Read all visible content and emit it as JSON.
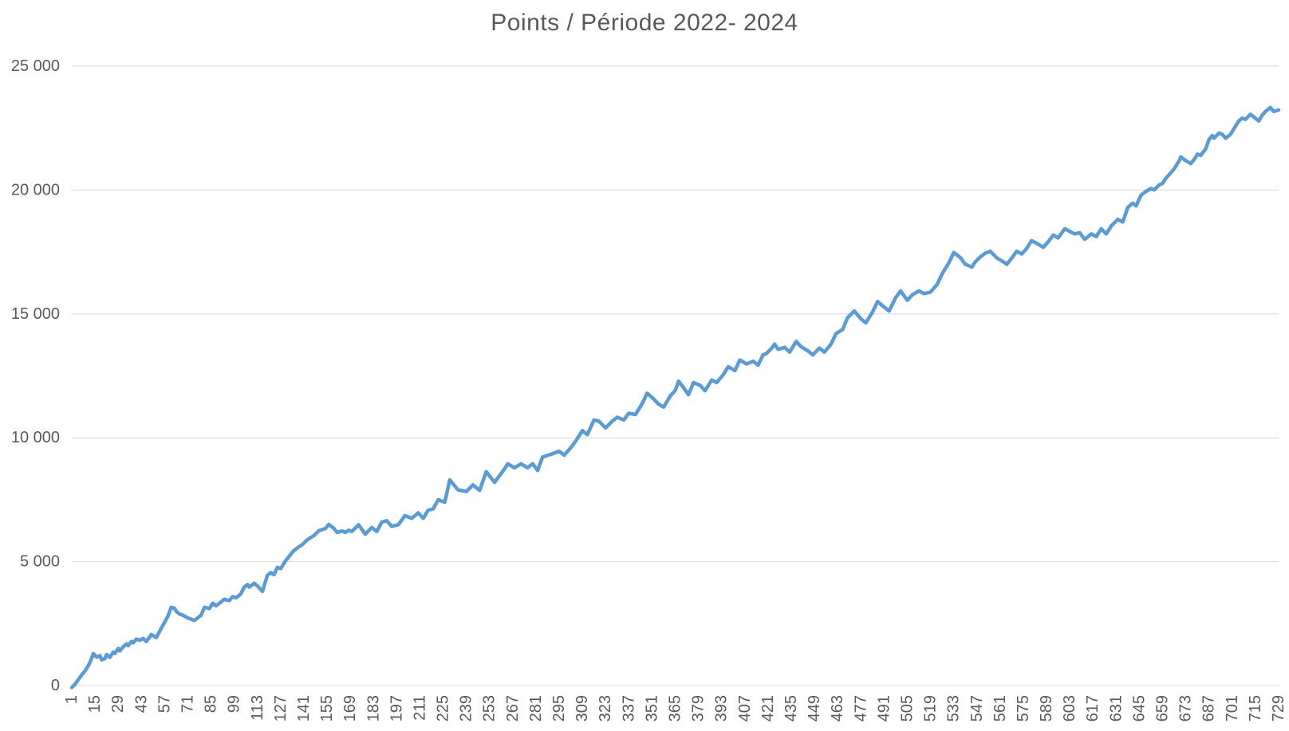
{
  "chart_data": {
    "type": "line",
    "title": "Points / Période 2022- 2024",
    "xlabel": "",
    "ylabel": "",
    "x_range": [
      1,
      729
    ],
    "ylim": [
      0,
      25000
    ],
    "grid": "horizontal",
    "legend": "none",
    "x_tick_labels": [
      "1",
      "15",
      "29",
      "43",
      "57",
      "71",
      "85",
      "99",
      "113",
      "127",
      "141",
      "155",
      "169",
      "183",
      "197",
      "211",
      "225",
      "239",
      "253",
      "267",
      "281",
      "295",
      "309",
      "323",
      "337",
      "351",
      "365",
      "379",
      "393",
      "407",
      "421",
      "435",
      "449",
      "463",
      "477",
      "491",
      "505",
      "519",
      "533",
      "547",
      "561",
      "575",
      "589",
      "603",
      "617",
      "631",
      "645",
      "659",
      "673",
      "687",
      "701",
      "715",
      "729"
    ],
    "y_ticks": [
      0,
      5000,
      10000,
      15000,
      20000,
      25000
    ],
    "y_tick_labels": [
      "0",
      "5 000",
      "10 000",
      "15 000",
      "20 000",
      "25 000"
    ],
    "colors": {
      "line": "#5B9BD5",
      "gridline": "#D9D9D9",
      "axis_text": "#595959",
      "title_text": "#595959",
      "background": "#FFFFFF"
    },
    "series": [
      {
        "name": "Points",
        "color": "#5B9BD5",
        "points": [
          [
            1,
            -80
          ],
          [
            3,
            60
          ],
          [
            5,
            250
          ],
          [
            7,
            430
          ],
          [
            9,
            590
          ],
          [
            11,
            800
          ],
          [
            13,
            1100
          ],
          [
            14,
            1290
          ],
          [
            16,
            1150
          ],
          [
            18,
            1210
          ],
          [
            19,
            1040
          ],
          [
            21,
            1090
          ],
          [
            22,
            1250
          ],
          [
            24,
            1140
          ],
          [
            26,
            1350
          ],
          [
            27,
            1290
          ],
          [
            29,
            1500
          ],
          [
            30,
            1400
          ],
          [
            32,
            1560
          ],
          [
            34,
            1680
          ],
          [
            35,
            1610
          ],
          [
            37,
            1780
          ],
          [
            38,
            1720
          ],
          [
            40,
            1880
          ],
          [
            42,
            1830
          ],
          [
            44,
            1900
          ],
          [
            46,
            1780
          ],
          [
            49,
            2060
          ],
          [
            52,
            1940
          ],
          [
            55,
            2310
          ],
          [
            57,
            2560
          ],
          [
            59,
            2800
          ],
          [
            61,
            3160
          ],
          [
            63,
            3110
          ],
          [
            64,
            3000
          ],
          [
            66,
            2890
          ],
          [
            68,
            2840
          ],
          [
            71,
            2730
          ],
          [
            75,
            2630
          ],
          [
            79,
            2840
          ],
          [
            81,
            3160
          ],
          [
            84,
            3110
          ],
          [
            86,
            3320
          ],
          [
            88,
            3220
          ],
          [
            91,
            3370
          ],
          [
            93,
            3480
          ],
          [
            96,
            3430
          ],
          [
            98,
            3590
          ],
          [
            100,
            3540
          ],
          [
            103,
            3700
          ],
          [
            105,
            3970
          ],
          [
            107,
            4080
          ],
          [
            108,
            3970
          ],
          [
            111,
            4130
          ],
          [
            113,
            4020
          ],
          [
            116,
            3800
          ],
          [
            119,
            4450
          ],
          [
            121,
            4560
          ],
          [
            123,
            4480
          ],
          [
            125,
            4770
          ],
          [
            127,
            4720
          ],
          [
            130,
            5040
          ],
          [
            132,
            5210
          ],
          [
            135,
            5450
          ],
          [
            138,
            5600
          ],
          [
            140,
            5690
          ],
          [
            143,
            5880
          ],
          [
            147,
            6050
          ],
          [
            150,
            6250
          ],
          [
            154,
            6340
          ],
          [
            156,
            6500
          ],
          [
            159,
            6350
          ],
          [
            161,
            6180
          ],
          [
            164,
            6240
          ],
          [
            166,
            6180
          ],
          [
            168,
            6270
          ],
          [
            170,
            6220
          ],
          [
            174,
            6490
          ],
          [
            178,
            6110
          ],
          [
            182,
            6380
          ],
          [
            185,
            6220
          ],
          [
            188,
            6600
          ],
          [
            191,
            6650
          ],
          [
            194,
            6430
          ],
          [
            198,
            6490
          ],
          [
            202,
            6860
          ],
          [
            206,
            6750
          ],
          [
            210,
            6970
          ],
          [
            213,
            6750
          ],
          [
            216,
            7080
          ],
          [
            219,
            7130
          ],
          [
            222,
            7500
          ],
          [
            226,
            7400
          ],
          [
            229,
            8300
          ],
          [
            234,
            7900
          ],
          [
            239,
            7830
          ],
          [
            243,
            8100
          ],
          [
            247,
            7880
          ],
          [
            251,
            8630
          ],
          [
            256,
            8200
          ],
          [
            262,
            8740
          ],
          [
            264,
            8950
          ],
          [
            268,
            8790
          ],
          [
            272,
            8950
          ],
          [
            276,
            8790
          ],
          [
            279,
            8950
          ],
          [
            282,
            8680
          ],
          [
            285,
            9220
          ],
          [
            290,
            9330
          ],
          [
            295,
            9460
          ],
          [
            298,
            9300
          ],
          [
            302,
            9600
          ],
          [
            305,
            9870
          ],
          [
            309,
            10290
          ],
          [
            312,
            10130
          ],
          [
            316,
            10720
          ],
          [
            319,
            10670
          ],
          [
            323,
            10400
          ],
          [
            327,
            10670
          ],
          [
            330,
            10830
          ],
          [
            334,
            10720
          ],
          [
            337,
            10990
          ],
          [
            341,
            10940
          ],
          [
            344,
            11260
          ],
          [
            346,
            11500
          ],
          [
            348,
            11800
          ],
          [
            351,
            11630
          ],
          [
            355,
            11360
          ],
          [
            358,
            11240
          ],
          [
            362,
            11690
          ],
          [
            365,
            11900
          ],
          [
            367,
            12280
          ],
          [
            369,
            12120
          ],
          [
            373,
            11740
          ],
          [
            376,
            12230
          ],
          [
            380,
            12120
          ],
          [
            383,
            11900
          ],
          [
            387,
            12330
          ],
          [
            390,
            12230
          ],
          [
            394,
            12550
          ],
          [
            397,
            12870
          ],
          [
            401,
            12710
          ],
          [
            404,
            13140
          ],
          [
            408,
            12980
          ],
          [
            412,
            13090
          ],
          [
            415,
            12930
          ],
          [
            418,
            13350
          ],
          [
            420,
            13400
          ],
          [
            423,
            13600
          ],
          [
            425,
            13780
          ],
          [
            427,
            13570
          ],
          [
            431,
            13650
          ],
          [
            434,
            13460
          ],
          [
            438,
            13890
          ],
          [
            441,
            13670
          ],
          [
            445,
            13510
          ],
          [
            448,
            13350
          ],
          [
            452,
            13620
          ],
          [
            455,
            13460
          ],
          [
            459,
            13780
          ],
          [
            462,
            14210
          ],
          [
            466,
            14370
          ],
          [
            469,
            14850
          ],
          [
            473,
            15120
          ],
          [
            477,
            14800
          ],
          [
            480,
            14640
          ],
          [
            484,
            15070
          ],
          [
            487,
            15500
          ],
          [
            491,
            15280
          ],
          [
            494,
            15120
          ],
          [
            498,
            15660
          ],
          [
            501,
            15930
          ],
          [
            505,
            15550
          ],
          [
            508,
            15770
          ],
          [
            512,
            15930
          ],
          [
            515,
            15820
          ],
          [
            519,
            15880
          ],
          [
            523,
            16190
          ],
          [
            526,
            16620
          ],
          [
            530,
            17050
          ],
          [
            533,
            17480
          ],
          [
            537,
            17270
          ],
          [
            540,
            17000
          ],
          [
            544,
            16890
          ],
          [
            546,
            17100
          ],
          [
            549,
            17300
          ],
          [
            552,
            17450
          ],
          [
            555,
            17530
          ],
          [
            559,
            17260
          ],
          [
            563,
            17100
          ],
          [
            565,
            17000
          ],
          [
            568,
            17250
          ],
          [
            571,
            17530
          ],
          [
            574,
            17420
          ],
          [
            577,
            17640
          ],
          [
            580,
            17960
          ],
          [
            583,
            17850
          ],
          [
            587,
            17690
          ],
          [
            590,
            17910
          ],
          [
            593,
            18180
          ],
          [
            596,
            18070
          ],
          [
            600,
            18440
          ],
          [
            603,
            18330
          ],
          [
            606,
            18230
          ],
          [
            609,
            18280
          ],
          [
            612,
            18010
          ],
          [
            616,
            18230
          ],
          [
            619,
            18120
          ],
          [
            622,
            18440
          ],
          [
            625,
            18230
          ],
          [
            628,
            18550
          ],
          [
            632,
            18820
          ],
          [
            635,
            18710
          ],
          [
            638,
            19300
          ],
          [
            641,
            19470
          ],
          [
            643,
            19360
          ],
          [
            646,
            19790
          ],
          [
            649,
            19950
          ],
          [
            652,
            20060
          ],
          [
            654,
            20010
          ],
          [
            657,
            20210
          ],
          [
            659,
            20270
          ],
          [
            661,
            20480
          ],
          [
            664,
            20700
          ],
          [
            666,
            20860
          ],
          [
            669,
            21180
          ],
          [
            670,
            21340
          ],
          [
            673,
            21180
          ],
          [
            676,
            21070
          ],
          [
            678,
            21230
          ],
          [
            680,
            21450
          ],
          [
            682,
            21400
          ],
          [
            685,
            21660
          ],
          [
            687,
            22040
          ],
          [
            689,
            22200
          ],
          [
            690,
            22090
          ],
          [
            693,
            22300
          ],
          [
            695,
            22250
          ],
          [
            697,
            22090
          ],
          [
            700,
            22250
          ],
          [
            702,
            22470
          ],
          [
            705,
            22790
          ],
          [
            707,
            22900
          ],
          [
            709,
            22850
          ],
          [
            712,
            23060
          ],
          [
            714,
            22950
          ],
          [
            717,
            22790
          ],
          [
            719,
            23010
          ],
          [
            721,
            23170
          ],
          [
            724,
            23330
          ],
          [
            726,
            23170
          ],
          [
            729,
            23230
          ]
        ]
      }
    ]
  }
}
